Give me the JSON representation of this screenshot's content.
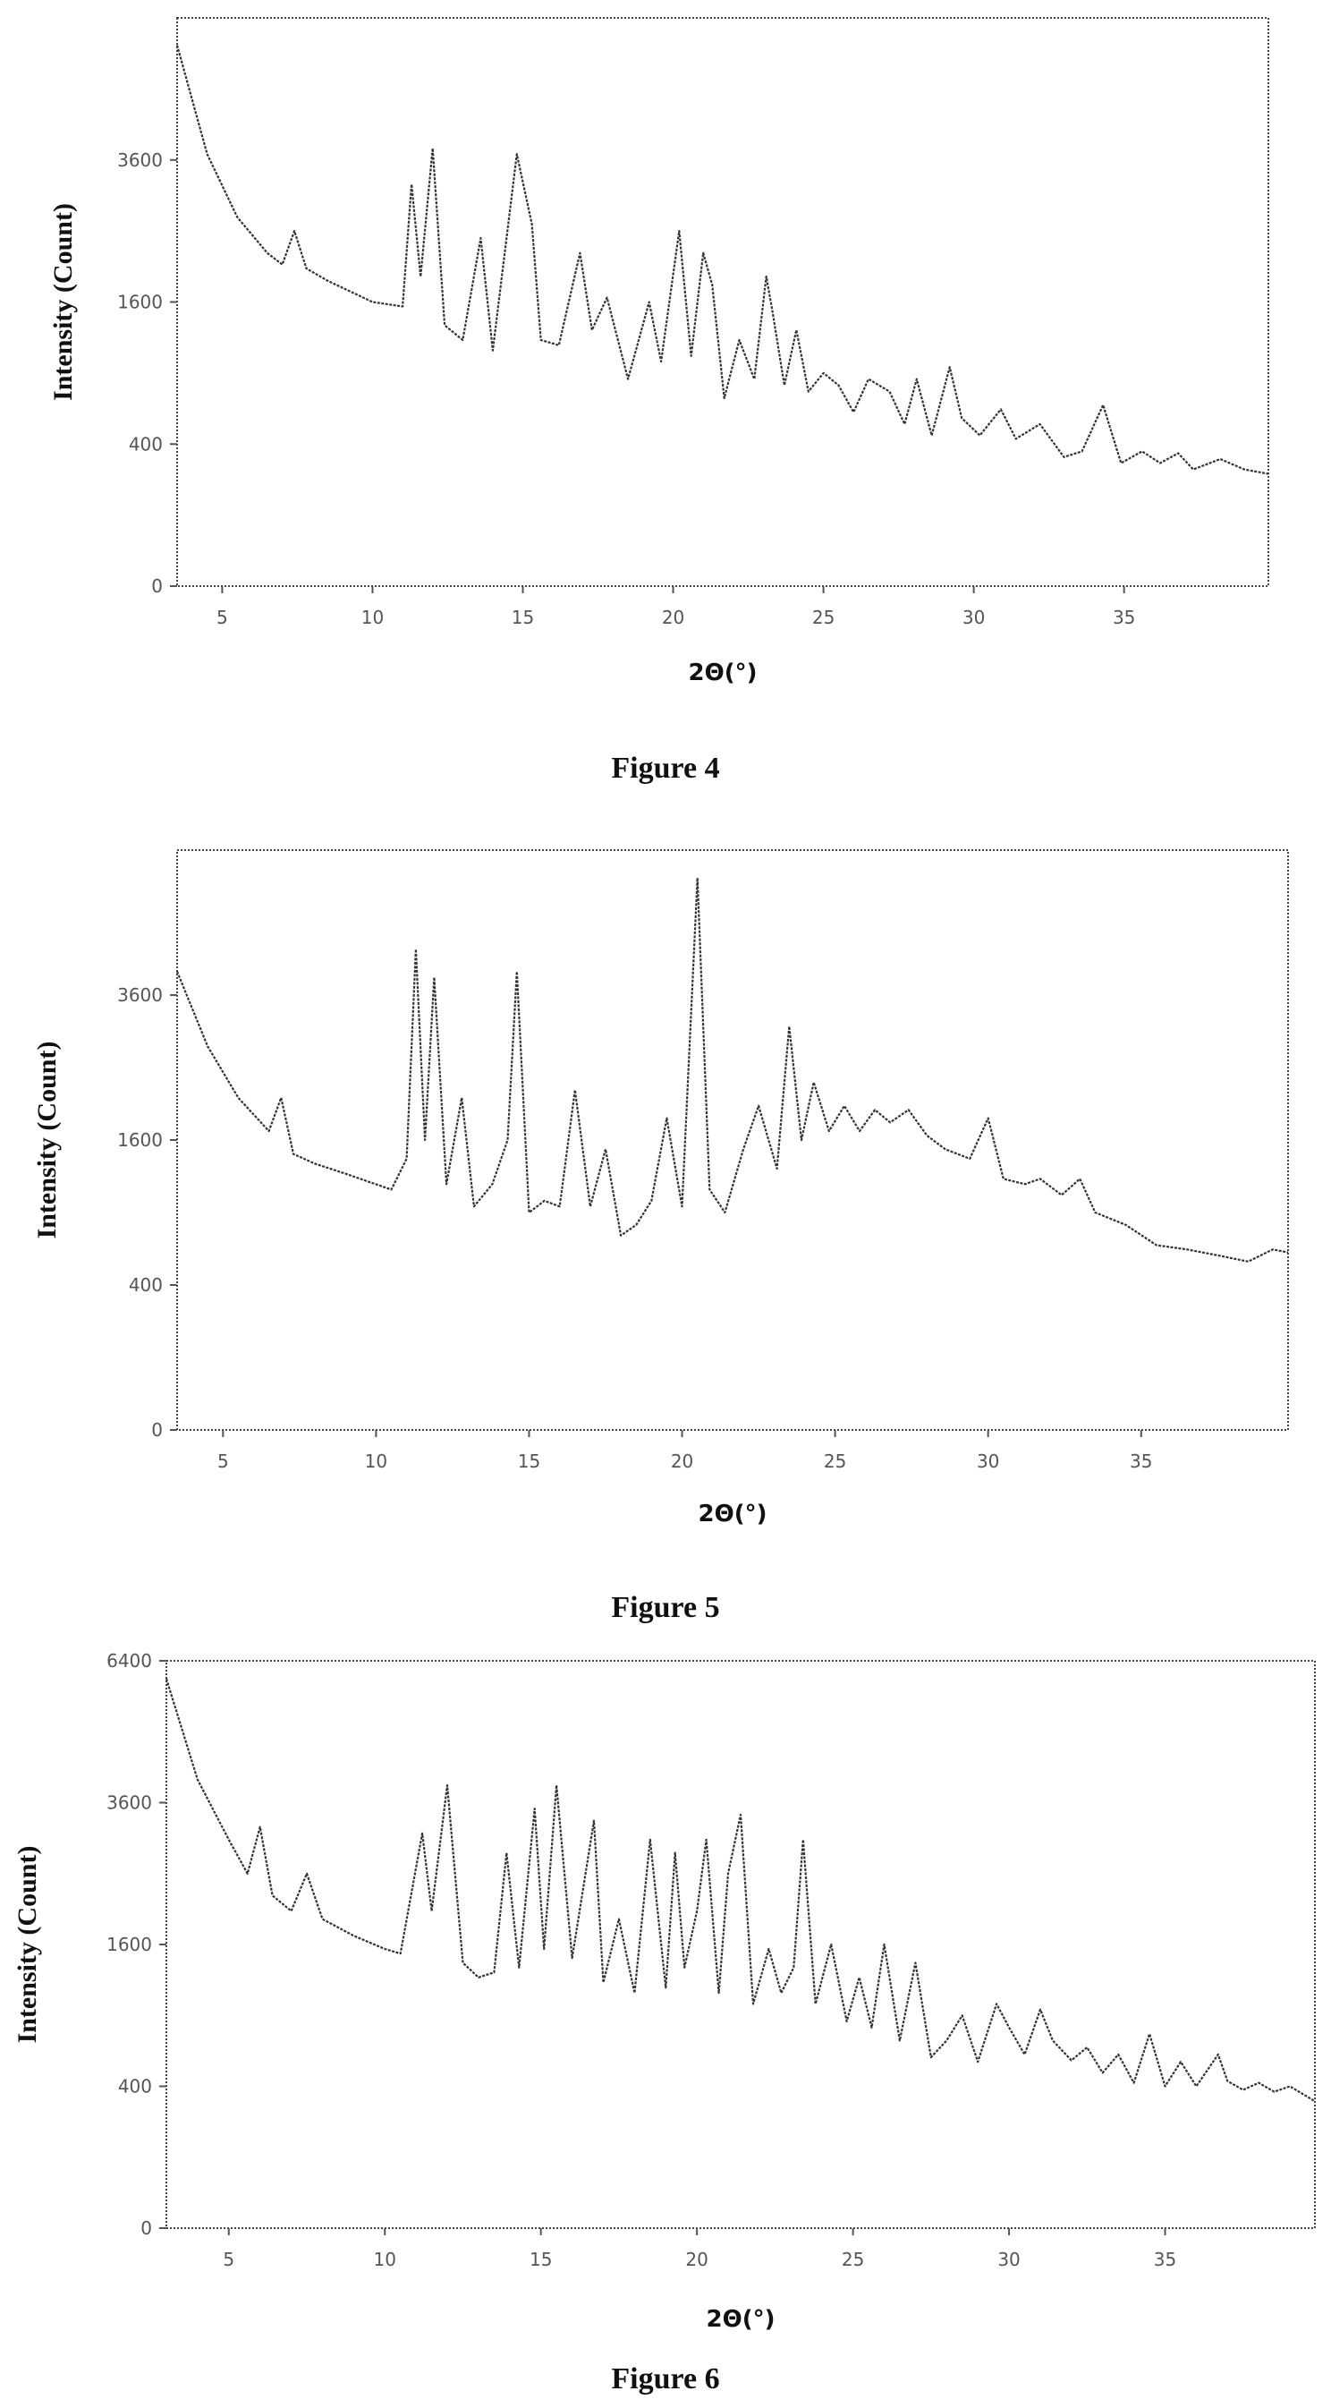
{
  "chart_data": [
    {
      "type": "line",
      "xlabel": "2Θ(°)",
      "ylabel": "Intensity (Count)",
      "xticks": [
        5,
        10,
        15,
        20,
        25,
        30,
        35
      ],
      "yticks": [
        "0",
        "400",
        "1600",
        "3600"
      ],
      "xlim": [
        3.5,
        39.8
      ],
      "ylim": [
        0,
        6400
      ],
      "yscale": "sqrt",
      "grid": false,
      "caption": "Figure 4",
      "series": [
        {
          "x": [
            3.5,
            4.5,
            5.5,
            6.5,
            7.0,
            7.4,
            7.8,
            8.5,
            10.0,
            11.0,
            11.3,
            11.6,
            12.0,
            12.4,
            13.0,
            13.6,
            14.0,
            14.8,
            15.3,
            15.6,
            16.2,
            16.9,
            17.3,
            17.8,
            18.5,
            19.2,
            19.6,
            20.2,
            20.6,
            21.0,
            21.3,
            21.7,
            22.2,
            22.7,
            23.1,
            23.3,
            23.7,
            24.1,
            24.5,
            25.0,
            25.5,
            26.0,
            26.5,
            27.2,
            27.7,
            28.1,
            28.6,
            29.2,
            29.6,
            30.2,
            30.9,
            31.4,
            32.2,
            33.0,
            33.6,
            34.3,
            34.9,
            35.6,
            36.2,
            36.8,
            37.3,
            38.2,
            39.0,
            39.8
          ],
          "y": [
            5800,
            3700,
            2700,
            2200,
            2050,
            2500,
            2000,
            1850,
            1600,
            1550,
            3200,
            1900,
            3800,
            1350,
            1200,
            2400,
            1100,
            3700,
            2600,
            1200,
            1150,
            2200,
            1300,
            1650,
            850,
            1600,
            1000,
            2500,
            1050,
            2200,
            1800,
            700,
            1200,
            850,
            1900,
            1500,
            800,
            1300,
            750,
            900,
            800,
            600,
            850,
            750,
            520,
            850,
            450,
            950,
            560,
            450,
            620,
            430,
            520,
            330,
            360,
            650,
            300,
            360,
            300,
            350,
            270,
            320,
            270,
            250
          ]
        }
      ]
    },
    {
      "type": "line",
      "xlabel": "2Θ(°)",
      "ylabel": "Intensity (Count)",
      "xticks": [
        5,
        10,
        15,
        20,
        25,
        30,
        35
      ],
      "yticks": [
        "0",
        "400",
        "1600",
        "3600"
      ],
      "xlim": [
        3.5,
        39.8
      ],
      "ylim": [
        0,
        6400
      ],
      "yscale": "sqrt",
      "grid": false,
      "caption": "Figure 5",
      "series": [
        {
          "x": [
            3.5,
            4.5,
            5.5,
            6.5,
            6.9,
            7.3,
            8.0,
            9.0,
            10.5,
            11.0,
            11.3,
            11.6,
            11.9,
            12.3,
            12.8,
            13.2,
            13.8,
            14.3,
            14.6,
            15.0,
            15.5,
            16.0,
            16.5,
            17.0,
            17.5,
            18.0,
            18.5,
            19.0,
            19.5,
            20.0,
            20.5,
            20.9,
            21.4,
            22.0,
            22.5,
            23.1,
            23.5,
            23.9,
            24.3,
            24.8,
            25.3,
            25.8,
            26.3,
            26.8,
            27.4,
            28.0,
            28.6,
            29.4,
            30.0,
            30.5,
            31.2,
            31.7,
            32.4,
            33.0,
            33.5,
            34.5,
            35.5,
            36.5,
            37.5,
            38.5,
            39.3,
            39.8
          ],
          "y": [
            4000,
            2800,
            2100,
            1700,
            2100,
            1450,
            1350,
            1250,
            1100,
            1400,
            4400,
            1600,
            3900,
            1150,
            2100,
            950,
            1150,
            1600,
            4000,
            900,
            1000,
            950,
            2200,
            950,
            1500,
            720,
            800,
            1000,
            1850,
            950,
            5800,
            1100,
            900,
            1500,
            2000,
            1300,
            3100,
            1600,
            2300,
            1700,
            2000,
            1700,
            1950,
            1800,
            1950,
            1650,
            1500,
            1400,
            1850,
            1200,
            1150,
            1200,
            1050,
            1200,
            900,
            800,
            650,
            620,
            580,
            540,
            620,
            600
          ]
        }
      ]
    },
    {
      "type": "line",
      "xlabel": "2Θ(°)",
      "ylabel": "Intensity (Count)",
      "xticks": [
        5,
        10,
        15,
        20,
        25,
        30,
        35
      ],
      "yticks": [
        "0",
        "400",
        "1600",
        "3600",
        "6400"
      ],
      "xlim": [
        3.0,
        39.8
      ],
      "ylim": [
        0,
        6400
      ],
      "yscale": "sqrt",
      "grid": false,
      "caption": "Figure 6",
      "series": [
        {
          "x": [
            3.0,
            4.0,
            5.0,
            5.6,
            6.0,
            6.4,
            7.0,
            7.5,
            8.0,
            9.0,
            10.0,
            10.5,
            11.2,
            11.5,
            12.0,
            12.5,
            13.0,
            13.5,
            13.9,
            14.3,
            14.8,
            15.1,
            15.5,
            16.0,
            16.7,
            17.0,
            17.5,
            18.0,
            18.5,
            19.0,
            19.3,
            19.6,
            20.0,
            20.3,
            20.7,
            21.0,
            21.4,
            21.8,
            22.3,
            22.7,
            23.1,
            23.4,
            23.8,
            24.3,
            24.8,
            25.2,
            25.6,
            26.0,
            26.5,
            27.0,
            27.5,
            28.0,
            28.5,
            29.0,
            29.6,
            30.0,
            30.5,
            31.0,
            31.4,
            32.0,
            32.5,
            33.0,
            33.5,
            34.0,
            34.5,
            35.0,
            35.5,
            36.0,
            36.7,
            37.0,
            37.5,
            38.0,
            38.5,
            39.0,
            39.8
          ],
          "y": [
            6000,
            4000,
            3000,
            2500,
            3200,
            2200,
            2000,
            2500,
            1900,
            1700,
            1550,
            1500,
            3100,
            2000,
            3900,
            1400,
            1250,
            1300,
            2800,
            1350,
            3500,
            1550,
            3900,
            1450,
            3300,
            1200,
            1900,
            1100,
            3000,
            1150,
            2800,
            1350,
            2000,
            3000,
            1100,
            2500,
            3400,
            1000,
            1550,
            1100,
            1350,
            3000,
            1000,
            1600,
            850,
            1250,
            800,
            1600,
            700,
            1400,
            580,
            700,
            900,
            550,
            1000,
            800,
            600,
            950,
            700,
            560,
            650,
            480,
            600,
            420,
            750,
            400,
            550,
            400,
            600,
            430,
            380,
            420,
            370,
            400,
            320
          ]
        }
      ]
    }
  ]
}
